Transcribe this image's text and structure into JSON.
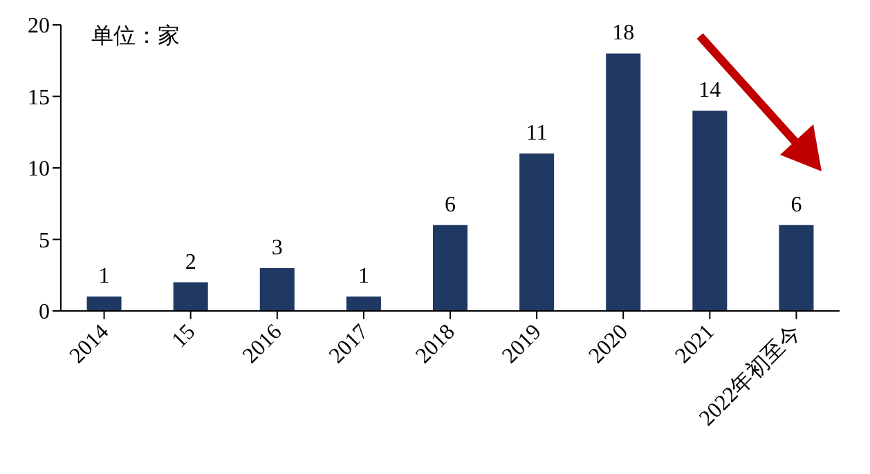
{
  "chart_data": {
    "type": "bar",
    "annotations": [
      "单位：家"
    ],
    "categories": [
      "2014",
      "15",
      "2016",
      "2017",
      "2018",
      "2019",
      "2020",
      "2021",
      "2022年初至今"
    ],
    "values": [
      1,
      2,
      3,
      1,
      6,
      11,
      18,
      14,
      6
    ],
    "color": "#203864",
    "ylim": [
      0,
      20
    ],
    "yticks": [
      0,
      5,
      10,
      15,
      20
    ],
    "data_labels": true,
    "grid": false
  }
}
